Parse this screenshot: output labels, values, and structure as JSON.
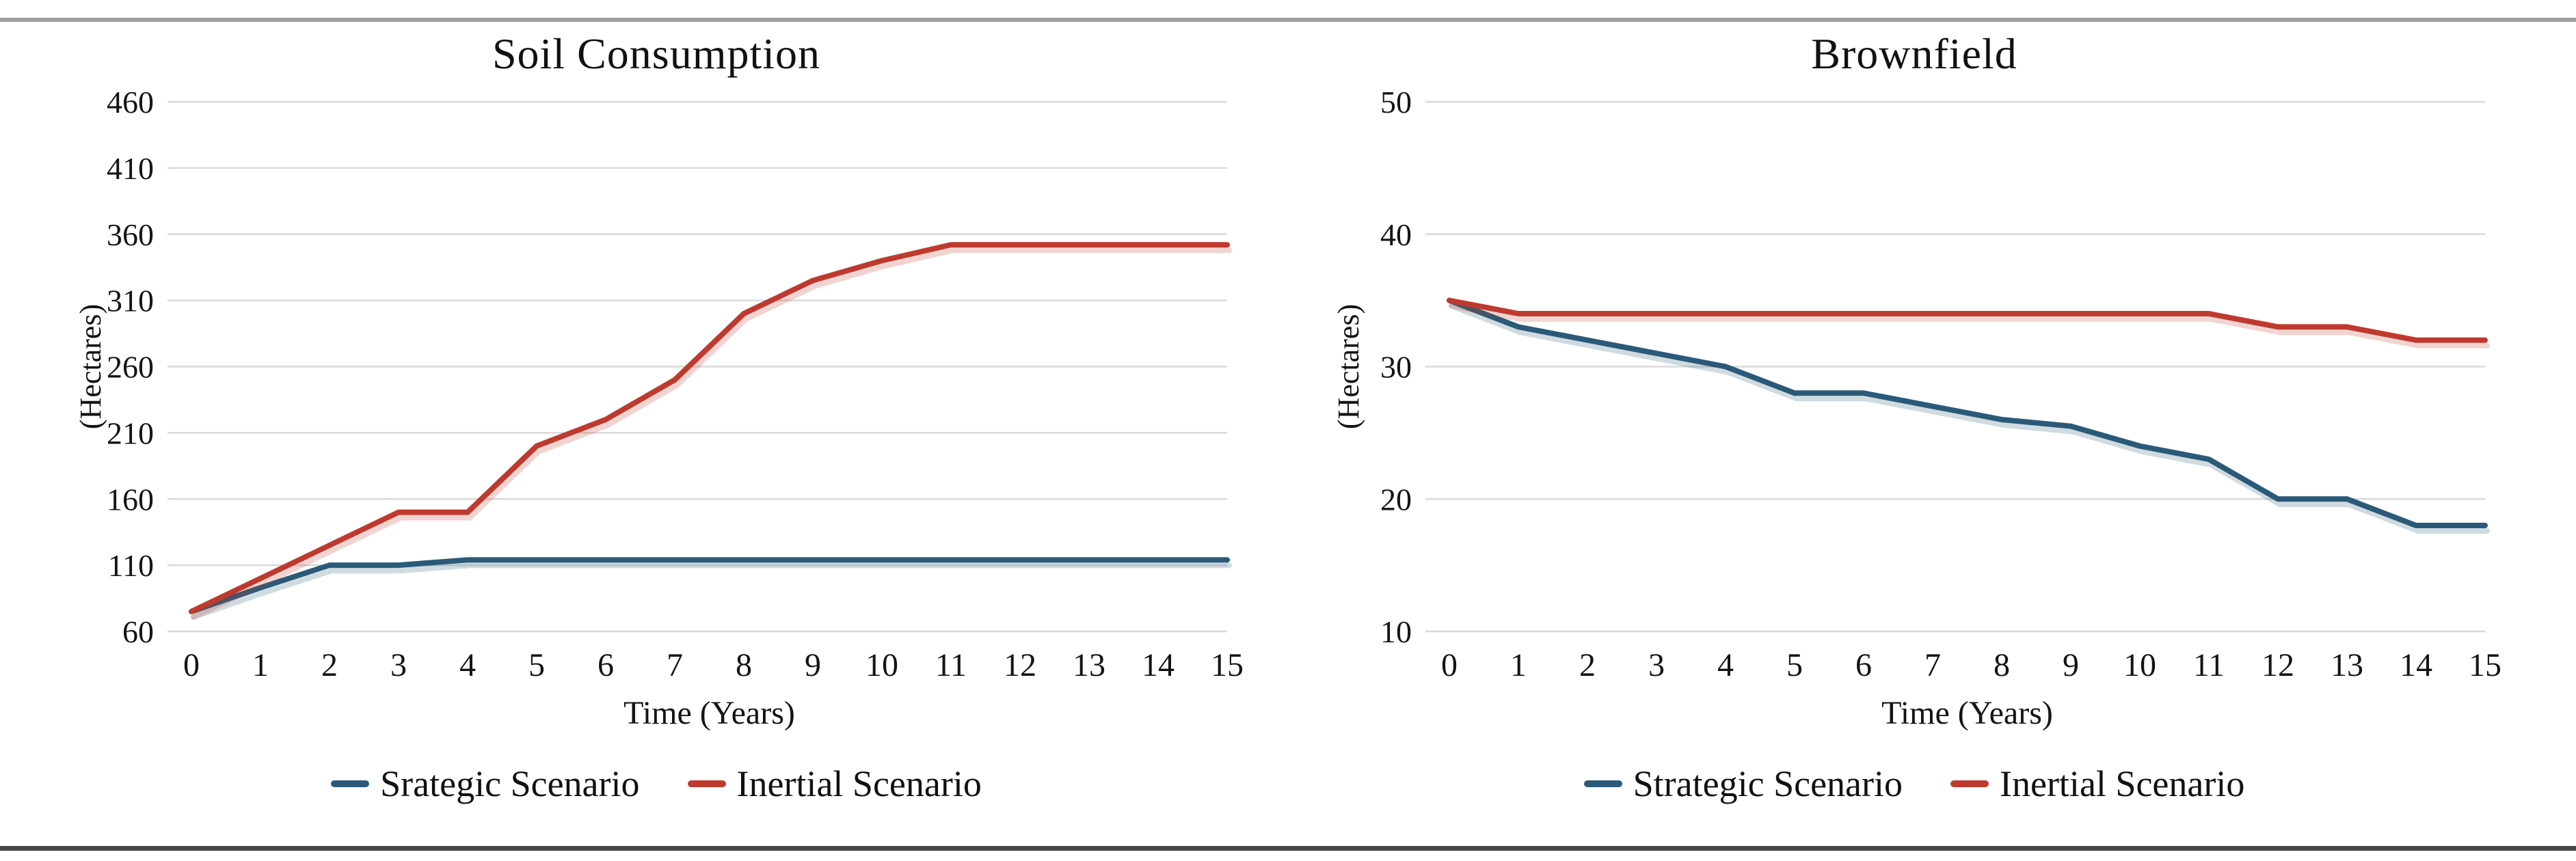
{
  "figure": {
    "background_color": "#ffffff",
    "top_rule_color": "#9e9e9e",
    "bottom_rule_color": "#474747",
    "gridline_color": "#d9d9d9",
    "text_color": "#141414"
  },
  "chart_data": [
    {
      "type": "line",
      "title": "Soil Consumption",
      "xlabel": "Time (Years)",
      "ylabel": "(Hectares)",
      "x": [
        0,
        1,
        2,
        3,
        4,
        5,
        6,
        7,
        8,
        9,
        10,
        11,
        12,
        13,
        14,
        15
      ],
      "xlim": [
        0,
        15
      ],
      "ylim": [
        60,
        460
      ],
      "yticks": [
        60,
        110,
        160,
        210,
        260,
        310,
        360,
        410,
        460
      ],
      "grid": true,
      "legend_position": "bottom",
      "series": [
        {
          "name": "Srategic Scenario",
          "color": "#2b5a78",
          "values": [
            75,
            93,
            110,
            110,
            114,
            114,
            114,
            114,
            114,
            114,
            114,
            114,
            114,
            114,
            114,
            114
          ]
        },
        {
          "name": "Inertial Scenario",
          "color": "#bf3a2e",
          "values": [
            75,
            100,
            125,
            150,
            150,
            200,
            220,
            250,
            300,
            325,
            340,
            352,
            352,
            352,
            352,
            352
          ]
        }
      ]
    },
    {
      "type": "line",
      "title": "Brownfield",
      "xlabel": "Time (Years)",
      "ylabel": "(Hectares)",
      "x": [
        0,
        1,
        2,
        3,
        4,
        5,
        6,
        7,
        8,
        9,
        10,
        11,
        12,
        13,
        14,
        15
      ],
      "xlim": [
        0,
        15
      ],
      "ylim": [
        10,
        50
      ],
      "yticks": [
        10,
        20,
        30,
        40,
        50
      ],
      "grid": true,
      "legend_position": "bottom",
      "series": [
        {
          "name": "Strategic Scenario",
          "color": "#2b5a78",
          "values": [
            35,
            33,
            32,
            31,
            30,
            28,
            28,
            27,
            26,
            25.5,
            24,
            23,
            20,
            20,
            18,
            18
          ]
        },
        {
          "name": "Inertial Scenario",
          "color": "#bf3a2e",
          "values": [
            35,
            34,
            34,
            34,
            34,
            34,
            34,
            34,
            34,
            34,
            34,
            34,
            33,
            33,
            32,
            32
          ]
        }
      ]
    }
  ]
}
